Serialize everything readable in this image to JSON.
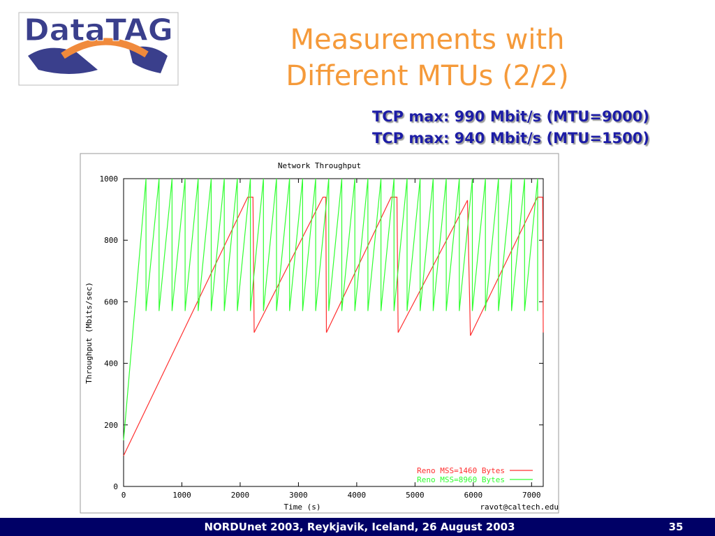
{
  "slide": {
    "logo": "DataTAG",
    "title_lines": [
      "Measurements with",
      "Different MTUs (2/2)"
    ],
    "notes": [
      "TCP max: 990 Mbit/s (MTU=9000)",
      "TCP max: 940 Mbit/s (MTU=1500)"
    ],
    "footer": "NORDUnet 2003, Reykjavik, Iceland, 26 August 2003",
    "page": "35"
  },
  "chart_data": {
    "type": "line",
    "title": "Network Throughput",
    "x_label": "Time (s)",
    "y_label": "Throughput (Mbits/sec)",
    "annotation": "ravot@caltech.edu",
    "xlim": [
      0,
      7200
    ],
    "xticks": [
      0,
      1000,
      2000,
      3000,
      4000,
      5000,
      6000,
      7000
    ],
    "ylim": [
      0,
      1000
    ],
    "yticks": [
      0,
      200,
      400,
      600,
      800,
      1000
    ],
    "grid": false,
    "legend": "lower right",
    "series": [
      {
        "name": "Reno MSS=1460 Bytes",
        "color": "#ff3030",
        "x": [
          0,
          2130,
          2220,
          2240,
          3420,
          3470,
          3480,
          4590,
          4690,
          4710,
          5900,
          5950,
          7100,
          7190,
          7200
        ],
        "values": [
          100,
          940,
          940,
          500,
          940,
          940,
          500,
          940,
          940,
          500,
          930,
          490,
          940,
          940,
          500
        ]
      },
      {
        "name": "Reno MSS=8960 Bytes",
        "color": "#30ff30",
        "x": [
          0,
          384,
          384,
          608,
          608,
          832,
          832,
          1056,
          1056,
          1280,
          1280,
          1504,
          1504,
          1728,
          1728,
          1952,
          1952,
          2176,
          2176,
          2400,
          2400,
          2624,
          2624,
          2848,
          2848,
          3072,
          3072,
          3296,
          3296,
          3520,
          3520,
          3744,
          3744,
          3968,
          3968,
          4192,
          4192,
          4416,
          4416,
          4640,
          4640,
          4864,
          4864,
          5088,
          5088,
          5312,
          5312,
          5536,
          5536,
          5760,
          5760,
          5984,
          5984,
          6208,
          6208,
          6432,
          6432,
          6656,
          6656,
          6880,
          6880,
          7104,
          7104
        ],
        "values": [
          150,
          1000,
          570,
          1000,
          570,
          1000,
          570,
          1000,
          570,
          1000,
          570,
          1000,
          570,
          1000,
          570,
          1000,
          570,
          1000,
          570,
          1000,
          570,
          1000,
          570,
          1000,
          570,
          1000,
          570,
          1000,
          570,
          1000,
          570,
          1000,
          570,
          1000,
          570,
          1000,
          570,
          1000,
          570,
          1000,
          570,
          1000,
          570,
          1000,
          570,
          1000,
          570,
          1000,
          570,
          1000,
          570,
          1000,
          570,
          1000,
          570,
          1000,
          570,
          1000,
          570,
          1000,
          570,
          1000,
          570
        ]
      }
    ]
  }
}
